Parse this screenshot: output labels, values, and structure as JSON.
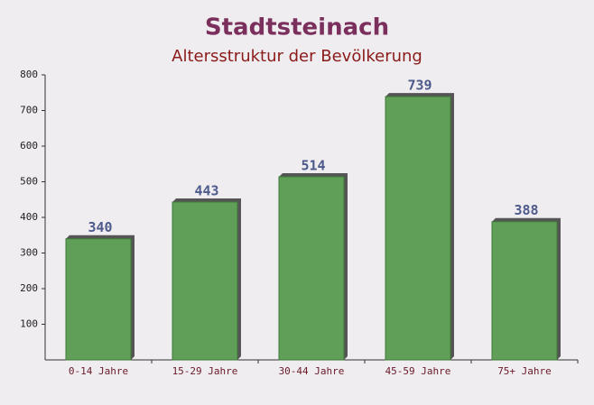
{
  "chart_data": {
    "type": "bar",
    "title": "Stadtsteinach",
    "subtitle": "Altersstruktur der Bevölkerung",
    "categories": [
      "0-14 Jahre",
      "15-29 Jahre",
      "30-44 Jahre",
      "45-59 Jahre",
      "75+ Jahre"
    ],
    "values": [
      340,
      443,
      514,
      739,
      388
    ],
    "color": "#5f9f57",
    "ylim": [
      0,
      800
    ],
    "yticks": [
      100,
      200,
      300,
      400,
      500,
      600,
      700,
      800
    ],
    "grid": false
  }
}
